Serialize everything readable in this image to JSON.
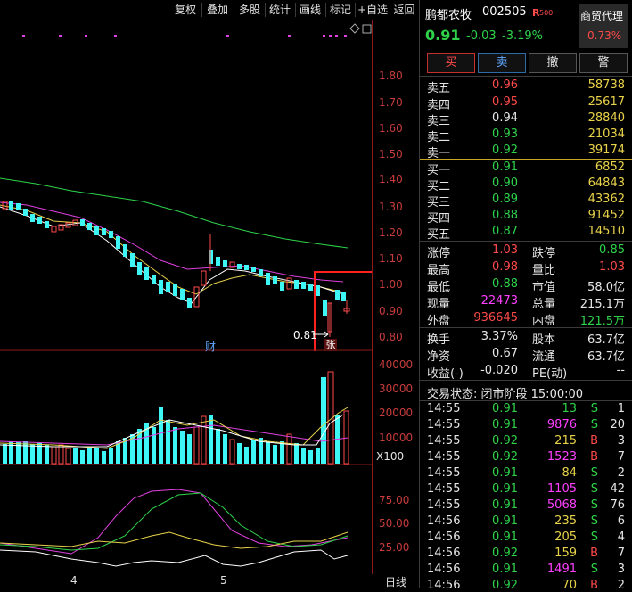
{
  "toolbar": {
    "items": [
      "复权",
      "叠加",
      "多股",
      "统计",
      "画线",
      "标记",
      "+自选",
      "返回"
    ]
  },
  "price_axis": [
    "1.80",
    "1.70",
    "1.60",
    "1.50",
    "1.40",
    "1.30",
    "1.20",
    "1.10",
    "1.00",
    "0.90",
    "0.80"
  ],
  "volume_axis": [
    "40000",
    "30000",
    "20000",
    "10000"
  ],
  "volume_unit": "X100",
  "indicator_axis": [
    "75.00",
    "50.00",
    "25.00"
  ],
  "x_labels": [
    "4",
    "5"
  ],
  "period_label": "日线",
  "annotations": {
    "low_price": "0.81",
    "event_cai": "财",
    "event_zhang": "张"
  },
  "colors": {
    "up": "#ff4a4a",
    "down": "#3ef6f6",
    "ma5": "#ffffff",
    "ma10": "#e8d24a",
    "ma20": "#e040e0",
    "ma60": "#2ed34a",
    "highlight_box": "#ff2020"
  },
  "stock": {
    "name": "鹏都农牧",
    "code": "002505",
    "badge": "R",
    "badge_sub": "500",
    "price": "0.91",
    "change": "-0.03",
    "change_pct": "-3.19%",
    "sector": "商贸代理",
    "sector_pct": "0.73%"
  },
  "trade_buttons": [
    "买",
    "卖",
    "撤",
    "警"
  ],
  "asks": [
    {
      "label": "卖五",
      "price": "0.96",
      "vol": "58738",
      "color": "red"
    },
    {
      "label": "卖四",
      "price": "0.95",
      "vol": "25617",
      "color": "red"
    },
    {
      "label": "卖三",
      "price": "0.94",
      "vol": "28840",
      "color": "white"
    },
    {
      "label": "卖二",
      "price": "0.93",
      "vol": "21034",
      "color": "green"
    },
    {
      "label": "卖一",
      "price": "0.92",
      "vol": "39174",
      "color": "green"
    }
  ],
  "bids": [
    {
      "label": "买一",
      "price": "0.91",
      "vol": "6852",
      "color": "green"
    },
    {
      "label": "买二",
      "price": "0.90",
      "vol": "64843",
      "color": "green"
    },
    {
      "label": "买三",
      "price": "0.89",
      "vol": "43362",
      "color": "green"
    },
    {
      "label": "买四",
      "price": "0.88",
      "vol": "91452",
      "color": "green"
    },
    {
      "label": "买五",
      "price": "0.87",
      "vol": "14510",
      "color": "green"
    }
  ],
  "stats": [
    {
      "l1": "涨停",
      "v1": "1.03",
      "c1": "red",
      "l2": "跌停",
      "v2": "0.85",
      "c2": "green"
    },
    {
      "l1": "最高",
      "v1": "0.98",
      "c1": "red",
      "l2": "量比",
      "v2": "1.03",
      "c2": "red"
    },
    {
      "l1": "最低",
      "v1": "0.88",
      "c1": "green",
      "l2": "市值",
      "v2": "58.0亿",
      "c2": "white"
    },
    {
      "l1": "现量",
      "v1": "22473",
      "c1": "magenta",
      "l2": "总量",
      "v2": "215.1万",
      "c2": "white"
    },
    {
      "l1": "外盘",
      "v1": "936645",
      "c1": "red",
      "l2": "内盘",
      "v2": "121.5万",
      "c2": "green"
    }
  ],
  "fundamentals": [
    {
      "l1": "换手",
      "v1": "3.37%",
      "l2": "股本",
      "v2": "63.7亿"
    },
    {
      "l1": "净资",
      "v1": "0.67",
      "l2": "流通",
      "v2": "63.7亿"
    },
    {
      "l1": "收益(-)",
      "v1": "-0.020",
      "l2": "PE(动)",
      "v2": "--"
    }
  ],
  "trade_status": "交易状态: 闭市阶段 15:00:00",
  "ticks": [
    {
      "time": "14:55",
      "price": "0.91",
      "vol": "13",
      "side": "S",
      "n": "1",
      "pc": "green",
      "vc": "green"
    },
    {
      "time": "14:55",
      "price": "0.91",
      "vol": "9876",
      "side": "S",
      "n": "20",
      "pc": "green",
      "vc": "magenta"
    },
    {
      "time": "14:55",
      "price": "0.92",
      "vol": "215",
      "side": "B",
      "n": "3",
      "pc": "green",
      "vc": "yellow"
    },
    {
      "time": "14:55",
      "price": "0.92",
      "vol": "1523",
      "side": "B",
      "n": "7",
      "pc": "green",
      "vc": "magenta"
    },
    {
      "time": "14:55",
      "price": "0.91",
      "vol": "84",
      "side": "S",
      "n": "2",
      "pc": "green",
      "vc": "yellow"
    },
    {
      "time": "14:55",
      "price": "0.91",
      "vol": "1105",
      "side": "S",
      "n": "42",
      "pc": "green",
      "vc": "magenta"
    },
    {
      "time": "14:55",
      "price": "0.91",
      "vol": "5068",
      "side": "S",
      "n": "76",
      "pc": "green",
      "vc": "magenta"
    },
    {
      "time": "14:56",
      "price": "0.91",
      "vol": "235",
      "side": "S",
      "n": "6",
      "pc": "green",
      "vc": "yellow"
    },
    {
      "time": "14:56",
      "price": "0.91",
      "vol": "205",
      "side": "S",
      "n": "4",
      "pc": "green",
      "vc": "yellow"
    },
    {
      "time": "14:56",
      "price": "0.92",
      "vol": "159",
      "side": "B",
      "n": "7",
      "pc": "green",
      "vc": "yellow"
    },
    {
      "time": "14:56",
      "price": "0.91",
      "vol": "1491",
      "side": "S",
      "n": "3",
      "pc": "green",
      "vc": "magenta"
    },
    {
      "time": "14:56",
      "price": "0.92",
      "vol": "70",
      "side": "B",
      "n": "2",
      "pc": "green",
      "vc": "yellow"
    }
  ]
}
